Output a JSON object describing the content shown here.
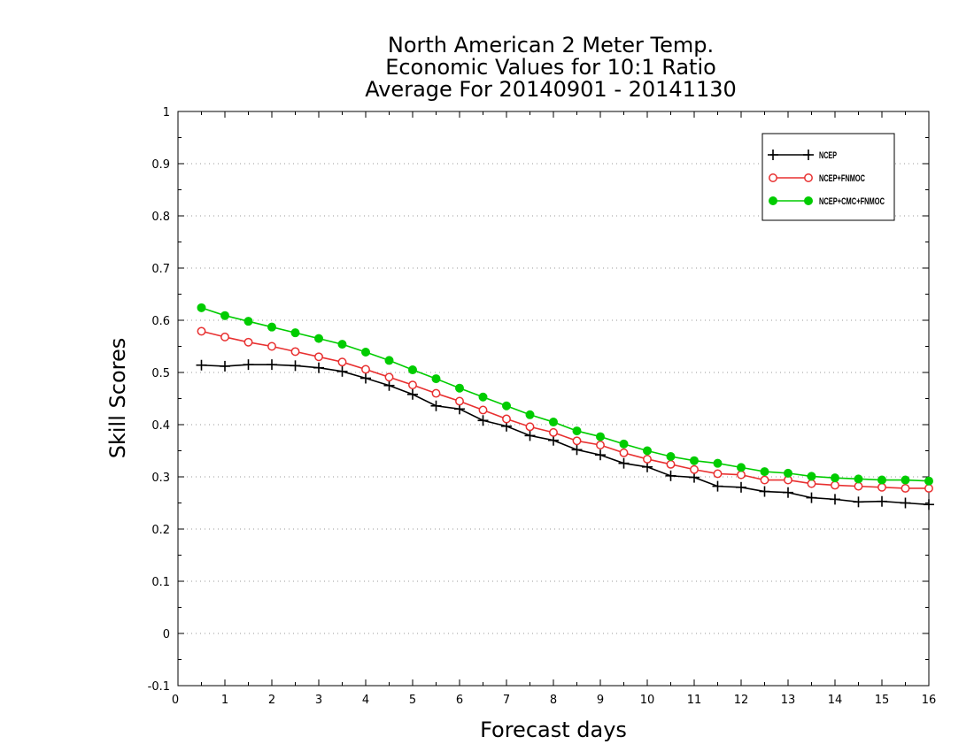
{
  "chart_data": {
    "type": "line",
    "title_lines": [
      "North American 2 Meter Temp.",
      "Economic Values for 10:1 Ratio",
      "Average For 20140901 - 20141130"
    ],
    "xlabel": "Forecast days",
    "ylabel": "Skill Scores",
    "xlim": [
      0,
      16
    ],
    "ylim": [
      -0.1,
      1
    ],
    "xticks": [
      0,
      1,
      2,
      3,
      4,
      5,
      6,
      7,
      8,
      9,
      10,
      11,
      12,
      13,
      14,
      15,
      16
    ],
    "yticks": [
      -0.1,
      0,
      0.1,
      0.2,
      0.3,
      0.4,
      0.5,
      0.6,
      0.7,
      0.8,
      0.9,
      1
    ],
    "ytick_labels": [
      "-0.1",
      "0",
      "0.1",
      "0.2",
      "0.3",
      "0.4",
      "0.5",
      "0.6",
      "0.7",
      "0.8",
      "0.9",
      "1"
    ],
    "grid": "horizontal-dotted",
    "legend_position": "top-right",
    "x": [
      0.5,
      1,
      1.5,
      2,
      2.5,
      3,
      3.5,
      4,
      4.5,
      5,
      5.5,
      6,
      6.5,
      7,
      7.5,
      8,
      8.5,
      9,
      9.5,
      10,
      10.5,
      11,
      11.5,
      12,
      12.5,
      13,
      13.5,
      14,
      14.5,
      15,
      15.5,
      16
    ],
    "series": [
      {
        "name": "NCEP",
        "color": "#000000",
        "marker": "plus",
        "values": [
          0.514,
          0.512,
          0.515,
          0.515,
          0.513,
          0.509,
          0.502,
          0.489,
          0.475,
          0.458,
          0.436,
          0.43,
          0.408,
          0.397,
          0.379,
          0.37,
          0.352,
          0.342,
          0.326,
          0.319,
          0.302,
          0.299,
          0.282,
          0.28,
          0.272,
          0.27,
          0.26,
          0.257,
          0.252,
          0.253,
          0.25,
          0.247
        ]
      },
      {
        "name": "NCEP+FNMOC",
        "color": "#e83030",
        "marker": "open-circle",
        "values": [
          0.579,
          0.568,
          0.558,
          0.55,
          0.54,
          0.53,
          0.52,
          0.506,
          0.491,
          0.476,
          0.46,
          0.445,
          0.428,
          0.411,
          0.396,
          0.385,
          0.369,
          0.361,
          0.346,
          0.334,
          0.324,
          0.314,
          0.306,
          0.304,
          0.294,
          0.294,
          0.287,
          0.284,
          0.282,
          0.28,
          0.278,
          0.278
        ]
      },
      {
        "name": "NCEP+CMC+FNMOC",
        "color": "#00cc00",
        "marker": "filled-circle",
        "values": [
          0.624,
          0.609,
          0.598,
          0.587,
          0.576,
          0.565,
          0.554,
          0.539,
          0.523,
          0.505,
          0.488,
          0.47,
          0.453,
          0.436,
          0.419,
          0.405,
          0.388,
          0.377,
          0.363,
          0.35,
          0.339,
          0.331,
          0.326,
          0.318,
          0.31,
          0.307,
          0.301,
          0.298,
          0.296,
          0.294,
          0.294,
          0.292
        ]
      }
    ]
  }
}
